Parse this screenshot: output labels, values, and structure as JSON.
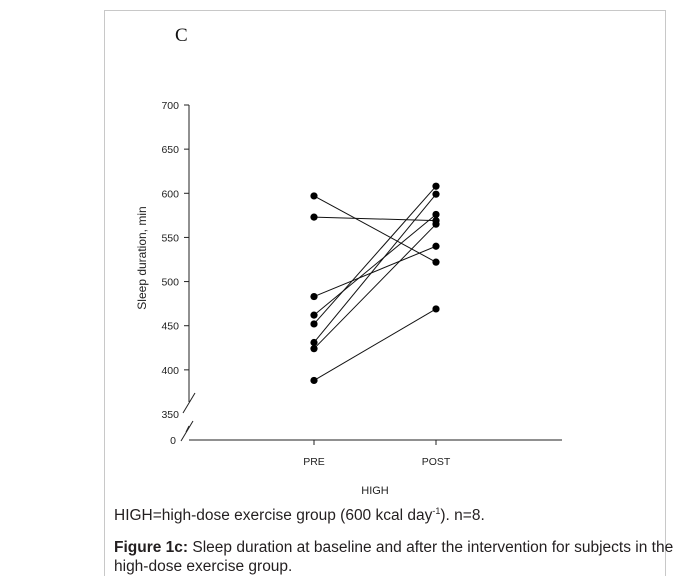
{
  "panel_label": "C",
  "note": {
    "text": "HIGH=high-dose exercise group (600 kcal day",
    "sup": "-1",
    "tail": "). n=8."
  },
  "caption": {
    "bold": "Figure 1c:",
    "text": " Sleep duration at baseline and after the intervention for subjects in the high-dose exercise group."
  },
  "chart_data": {
    "type": "line",
    "ylabel": "Sleep duration, min",
    "xlabel": "HIGH",
    "categories": [
      "PRE",
      "POST"
    ],
    "yticks": [
      700,
      650,
      600,
      550,
      500,
      450,
      400,
      350
    ],
    "ybreak_tick": "0",
    "ylim": [
      340,
      700
    ],
    "y_axis_break": true,
    "grid": false,
    "legend": "none",
    "series": [
      {
        "values": [
          597,
          522
        ]
      },
      {
        "values": [
          573,
          569
        ]
      },
      {
        "values": [
          483,
          540
        ]
      },
      {
        "values": [
          462,
          576
        ]
      },
      {
        "values": [
          452,
          608
        ]
      },
      {
        "values": [
          431,
          599
        ]
      },
      {
        "values": [
          424,
          565
        ]
      },
      {
        "values": [
          388,
          469
        ]
      }
    ]
  }
}
